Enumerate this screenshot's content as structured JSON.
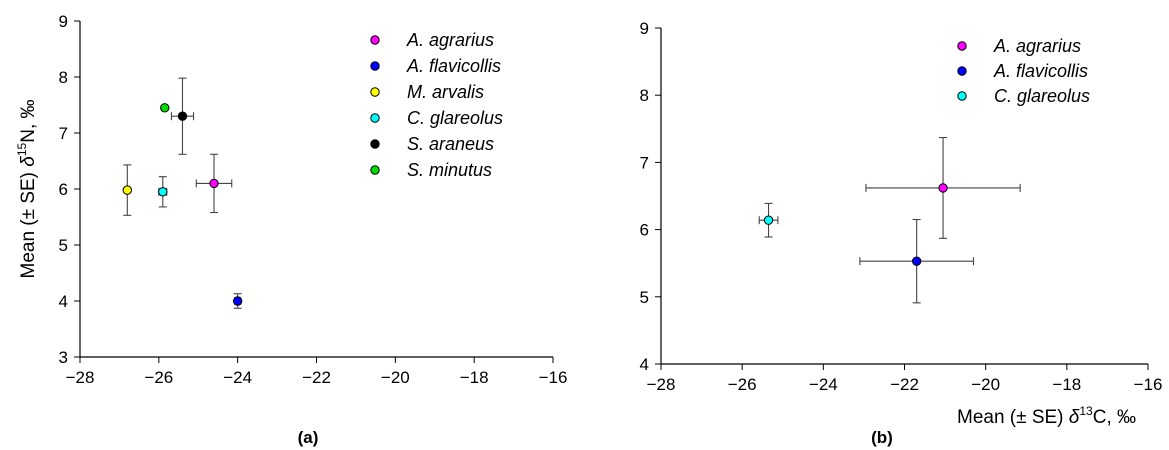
{
  "chart_data": [
    {
      "type": "scatter",
      "panel_label": "(a)",
      "xlabel": "",
      "ylabel_parts": [
        "Mean (± SE) ",
        "δ",
        "15",
        "N, ‰"
      ],
      "xlim": [
        -28,
        -16
      ],
      "ylim": [
        3,
        9
      ],
      "xticks": [
        -28,
        -26,
        -24,
        -22,
        -20,
        -18,
        -16
      ],
      "yticks": [
        3,
        4,
        5,
        6,
        7,
        8,
        9
      ],
      "xtick_labels": [
        "−28",
        "−26",
        "−24",
        "−22",
        "−20",
        "−18",
        "−16"
      ],
      "ytick_labels": [
        "3",
        "4",
        "5",
        "6",
        "7",
        "8",
        "9"
      ],
      "grid": false,
      "legend_position": "top-right",
      "series": [
        {
          "name": "A. agrarius",
          "color": "#ff00ff",
          "x": -24.6,
          "y": 6.1,
          "xerr": 0.45,
          "yerr": 0.52
        },
        {
          "name": "A. flavicollis",
          "color": "#0000ff",
          "x": -24.0,
          "y": 4.0,
          "xerr": 0.07,
          "yerr": 0.13
        },
        {
          "name": "M. arvalis",
          "color": "#ffff00",
          "x": -26.8,
          "y": 5.98,
          "xerr": 0.05,
          "yerr": 0.45
        },
        {
          "name": "C. glareolus",
          "color": "#00ffff",
          "x": -25.9,
          "y": 5.95,
          "xerr": 0.1,
          "yerr": 0.27
        },
        {
          "name": "S. araneus",
          "color": "#000000",
          "x": -25.4,
          "y": 7.3,
          "xerr": 0.28,
          "yerr": 0.68
        },
        {
          "name": "S. minutus",
          "color": "#00dd00",
          "x": -25.85,
          "y": 7.45,
          "xerr": 0,
          "yerr": 0
        }
      ]
    },
    {
      "type": "scatter",
      "panel_label": "(b)",
      "xlabel_parts": [
        "Mean (± SE) ",
        "δ",
        "13",
        "C, ‰"
      ],
      "ylabel": "",
      "xlim": [
        -28,
        -16
      ],
      "ylim": [
        4,
        9
      ],
      "xticks": [
        -28,
        -26,
        -24,
        -22,
        -20,
        -18,
        -16
      ],
      "yticks": [
        4,
        5,
        6,
        7,
        8,
        9
      ],
      "xtick_labels": [
        "−28",
        "−26",
        "−24",
        "−22",
        "−20",
        "−18",
        "−16"
      ],
      "ytick_labels": [
        "4",
        "5",
        "6",
        "7",
        "8",
        "9"
      ],
      "grid": false,
      "legend_position": "top-right",
      "series": [
        {
          "name": "A. agrarius",
          "color": "#ff00ff",
          "x": -21.05,
          "y": 6.62,
          "xerr": 1.9,
          "yerr": 0.75
        },
        {
          "name": "A. flavicollis",
          "color": "#0000ff",
          "x": -21.7,
          "y": 5.53,
          "xerr": 1.4,
          "yerr": 0.62
        },
        {
          "name": "C. glareolus",
          "color": "#00ffff",
          "x": -25.35,
          "y": 6.14,
          "xerr": 0.23,
          "yerr": 0.25
        }
      ]
    }
  ]
}
